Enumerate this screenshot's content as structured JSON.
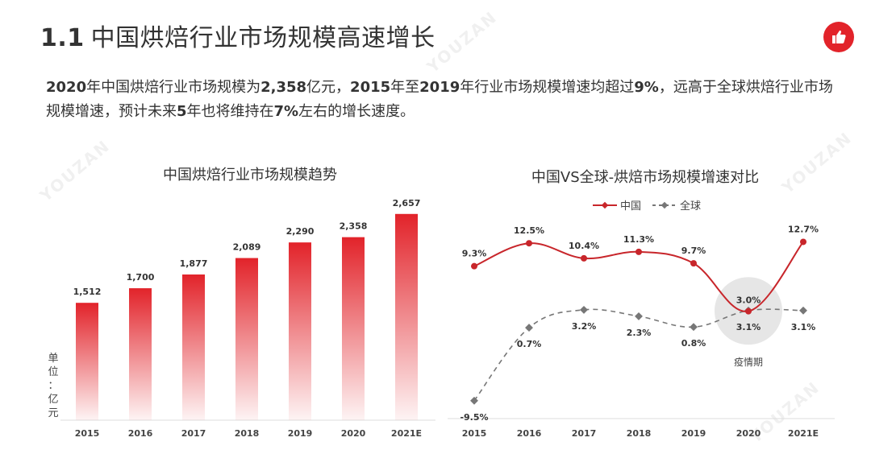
{
  "header": {
    "number": "1.1",
    "title": "中国烘焙行业市场规模高速增长",
    "logo_icon": "thumbs-up-icon",
    "accent": "#e2232a"
  },
  "intro": {
    "part1_bold": "2020",
    "part2": "年中国烘焙行业市场规模为",
    "part3_bold": "2,358",
    "part4": "亿元，",
    "part5_bold": "2015",
    "part6": "年至",
    "part7_bold": "2019",
    "part8": "年行业市场规模增速均超过",
    "part9_bold": "9%",
    "part10": "，远高于全球烘焙行业市场规模增速，预计未来",
    "part11_bold": "5",
    "part12": "年也将维持在",
    "part13_bold": "7%",
    "part14": "左右的增长速度。"
  },
  "chart_data": [
    {
      "type": "bar",
      "title": "中国烘焙行业市场规模趋势",
      "unit_label": "单位：亿元",
      "categories": [
        "2015",
        "2016",
        "2017",
        "2018",
        "2019",
        "2020",
        "2021E"
      ],
      "values": [
        1512,
        1700,
        1877,
        2089,
        2290,
        2358,
        2657
      ],
      "value_labels": [
        "1,512",
        "1,700",
        "1,877",
        "2,089",
        "2,290",
        "2,358",
        "2,657"
      ],
      "ylim": [
        0,
        2800
      ],
      "color": "#e2232a"
    },
    {
      "type": "line",
      "title": "中国VS全球-烘焙市场规模增速对比",
      "categories": [
        "2015",
        "2016",
        "2017",
        "2018",
        "2019",
        "2020",
        "2021E"
      ],
      "series": [
        {
          "name": "中国",
          "values": [
            9.3,
            12.5,
            10.4,
            11.3,
            9.7,
            3.0,
            12.7
          ],
          "labels": [
            "9.3%",
            "12.5%",
            "10.4%",
            "11.3%",
            "9.7%",
            "3.0%",
            "12.7%"
          ],
          "color": "#c8262b",
          "style": "solid"
        },
        {
          "name": "全球",
          "values": [
            -9.5,
            0.7,
            3.2,
            2.3,
            0.8,
            3.1,
            3.1
          ],
          "labels": [
            "-9.5%",
            "0.7%",
            "3.2%",
            "2.3%",
            "0.8%",
            "3.1%",
            "3.1%"
          ],
          "color": "#777777",
          "style": "dashed"
        }
      ],
      "annotation": "疫情期",
      "legend": "top"
    }
  ]
}
